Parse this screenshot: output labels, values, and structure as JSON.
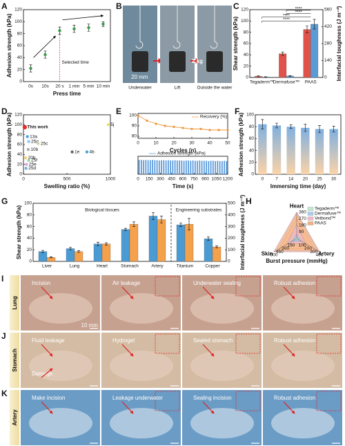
{
  "chart_data": [
    {
      "panel": "A",
      "type": "point",
      "xlabel": "Press time",
      "ylabel": "Adhesion strength (kPa)",
      "categories": [
        "0s",
        "10s",
        "20 s",
        "1 min",
        "5 min",
        "10 min"
      ],
      "values": [
        22,
        45,
        85,
        88,
        90,
        96
      ],
      "errors": [
        6,
        6,
        6,
        6,
        6,
        4
      ],
      "color": "#3a9a4a",
      "ylim": [
        0,
        120
      ],
      "yticks": [
        0,
        20,
        40,
        60,
        80,
        100,
        120
      ],
      "annotations": [
        "Selected time"
      ]
    },
    {
      "panel": "C",
      "type": "bar",
      "ylabel": "Shear strength (kPa)",
      "y2label": "Interfacial toughness (J m⁻²)",
      "categories": [
        "Tegaderm™",
        "Dermafuse™",
        "PAAS"
      ],
      "series": [
        {
          "color": "#e0524a",
          "values": [
            2,
            42,
            85
          ],
          "errors": [
            1,
            3,
            6
          ]
        },
        {
          "color": "#5b9bd5",
          "axis": "y2",
          "values": [
            4,
            12,
            440
          ],
          "errors": [
            2,
            3,
            40
          ]
        }
      ],
      "ylim": [
        0,
        120
      ],
      "yticks": [
        0,
        20,
        40,
        60,
        80,
        100,
        120
      ],
      "y2lim": [
        0,
        560
      ],
      "y2ticks": [
        0,
        140,
        280,
        420,
        560
      ],
      "annotations": [
        "****",
        "****",
        "****",
        "****"
      ]
    },
    {
      "panel": "D",
      "type": "scatter",
      "xlabel": "Swelling ratio (%)",
      "ylabel": "Adhesion strength (kPa)",
      "labels": [
        "This work",
        "13a",
        "25g",
        "25c",
        "10b",
        "20b",
        "25f",
        "25e",
        "25d",
        "1e",
        "4b",
        "5j"
      ],
      "x": [
        15,
        45,
        60,
        170,
        55,
        25,
        60,
        35,
        30,
        560,
        730,
        975
      ],
      "values": [
        95,
        76,
        66,
        62,
        50,
        33,
        28,
        20,
        12,
        45,
        45,
        100
      ],
      "colors": [
        "#e8302a",
        "#4aa3df",
        "#8fc6e8",
        "#c9e0a0",
        "#aaaaaa",
        "#f4d06f",
        "#9fd5a6",
        "#d9a3e0",
        "#7ab3d4",
        "#666666",
        "#3fa8e0",
        "#e8e07a"
      ],
      "xlim": [
        0,
        1000
      ],
      "xticks": [
        0,
        500,
        1000
      ],
      "ylim": [
        0,
        120
      ],
      "yticks": [
        0,
        20,
        40,
        60,
        80,
        100,
        120
      ]
    },
    {
      "panel": "E",
      "type": "line",
      "xlabel": "Cycles (n)",
      "x": [
        0,
        5,
        10,
        15,
        20,
        25,
        30,
        35,
        40,
        45,
        50
      ],
      "series": [
        {
          "name": "Recovery (%)",
          "color": "#f0943a",
          "values": [
            100,
            95,
            92,
            90,
            89,
            88,
            87,
            87,
            86,
            86,
            86
          ]
        }
      ],
      "xlim": [
        0,
        50
      ],
      "xticks": [
        0,
        10,
        20,
        30,
        40,
        50
      ],
      "ylim": [
        78,
        102
      ],
      "yticks": [
        80,
        90,
        100
      ]
    },
    {
      "type": "spike",
      "xlabel": "Time (s)",
      "x": [
        15,
        45,
        75,
        105,
        135,
        165,
        195,
        225,
        255,
        285,
        315,
        345,
        375,
        405,
        435,
        465,
        495,
        525,
        555,
        585,
        615,
        645,
        675,
        705,
        735,
        765,
        795,
        825,
        855,
        885,
        915,
        945,
        975,
        1005,
        1035,
        1065,
        1095,
        1125,
        1155,
        1185
      ],
      "series": [
        {
          "name": "Adhesion strength (kPa)",
          "color": "#4a90d9",
          "values": [
            48,
            48,
            47,
            48,
            47,
            47,
            48,
            47,
            47,
            46,
            47,
            47,
            46,
            47,
            46,
            46,
            47,
            46,
            46,
            46,
            45,
            46,
            46,
            45,
            46,
            45,
            45,
            46,
            45,
            45,
            45,
            44,
            45,
            45,
            44,
            45,
            44,
            44,
            45,
            44
          ]
        }
      ],
      "xlim": [
        0,
        1200
      ],
      "xticks": [
        0,
        150,
        300,
        450,
        600,
        750,
        900,
        1050,
        1200
      ],
      "ylim": [
        0,
        60
      ]
    },
    {
      "panel": "F",
      "type": "bar",
      "xlabel": "Immersing time (day)",
      "ylabel": "Adhesion strength (kPa)",
      "categories": [
        "0",
        "7",
        "14",
        "20",
        "25",
        "30"
      ],
      "series": [
        {
          "gradient": [
            "#7fb0e0",
            "#fbd3a8"
          ],
          "values": [
            84,
            82,
            80,
            78,
            76,
            76
          ],
          "errors": [
            8,
            4,
            3,
            6,
            6,
            5
          ]
        }
      ],
      "ylim": [
        0,
        100
      ],
      "yticks": [
        0,
        20,
        40,
        60,
        80,
        100
      ]
    },
    {
      "panel": "G",
      "type": "bar",
      "ylabel": "Shear strength (kPa)",
      "y2label": "Interfacial toughness (J m⁻²)",
      "categories": [
        "Liver",
        "Lung",
        "Heart",
        "Stomach",
        "Artery",
        "Titanium",
        "Copper"
      ],
      "series": [
        {
          "color": "#4a9bd4",
          "values": [
            17,
            22,
            30,
            55,
            78,
            63,
            39
          ],
          "errors": [
            2,
            2,
            3,
            2,
            6,
            3,
            3
          ]
        },
        {
          "color": "#f5a04a",
          "axis": "y2",
          "values": [
            35,
            85,
            150,
            320,
            360,
            320,
            125
          ],
          "errors": [
            5,
            8,
            10,
            20,
            30,
            50,
            10
          ]
        }
      ],
      "ylim": [
        0,
        100
      ],
      "yticks": [
        0,
        20,
        40,
        60,
        80,
        100
      ],
      "y2lim": [
        0,
        500
      ],
      "y2ticks": [
        0,
        100,
        200,
        300,
        400,
        500
      ],
      "annotations": [
        "Biological tissues",
        "Engineering substrates"
      ]
    },
    {
      "panel": "H",
      "type": "radar",
      "xlabel": "Burst pressure (mmHg)",
      "axes": [
        {
          "name": "Heart",
          "max": 360,
          "ticks": [
            90,
            180,
            270,
            360
          ]
        },
        {
          "name": "Artery",
          "max": 400,
          "ticks": [
            100,
            200,
            300,
            400
          ]
        },
        {
          "name": "Skin",
          "max": 600,
          "ticks": [
            150,
            300,
            450,
            600
          ]
        }
      ],
      "series": [
        {
          "name": "Tegaderm™",
          "color": "#bfe8cf",
          "values": [
            30,
            40,
            80
          ]
        },
        {
          "name": "Dermafuse™",
          "color": "#a9cdec",
          "values": [
            60,
            80,
            150
          ]
        },
        {
          "name": "Vetbond™",
          "color": "#f2b8c6",
          "values": [
            200,
            150,
            250
          ]
        },
        {
          "name": "PAAS",
          "color": "#f4b183",
          "values": [
            340,
            380,
            560
          ]
        }
      ]
    }
  ],
  "photo_b": {
    "panel": "B",
    "captions": [
      "Underwater",
      "Lift",
      "Outside the water"
    ],
    "scale": "20 mm",
    "weight": "2 kg"
  },
  "photo_rows": [
    {
      "panel": "I",
      "tissue": "Lung",
      "frames": [
        {
          "labels": [
            "Incision"
          ],
          "scale": "10 mm"
        },
        {
          "labels": [
            "Air leakage"
          ]
        },
        {
          "labels": [
            "Underwater sealing"
          ]
        },
        {
          "labels": [
            "Robust adhesion"
          ]
        }
      ]
    },
    {
      "panel": "J",
      "tissue": "Stomach",
      "frames": [
        {
          "labels": [
            "Fluid leakage",
            "Damage"
          ]
        },
        {
          "labels": [
            "Hydrogel"
          ]
        },
        {
          "labels": [
            "Sealed stomach"
          ]
        },
        {
          "labels": [
            "Robust adhesion"
          ]
        }
      ]
    },
    {
      "panel": "K",
      "tissue": "Artery",
      "frames": [
        {
          "labels": [
            "Make incision"
          ]
        },
        {
          "labels": [
            "Leakage underwater"
          ]
        },
        {
          "labels": [
            "Sealing incision"
          ]
        },
        {
          "labels": [
            "Robust adhesion"
          ]
        }
      ]
    }
  ]
}
